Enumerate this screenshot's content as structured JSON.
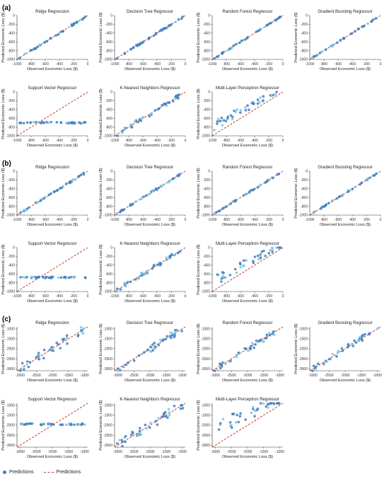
{
  "figure": {
    "legend": {
      "points_label": "Predictions",
      "line_label": "Predictions"
    },
    "colors": {
      "points": "#3f7fbf",
      "points_light": "#7ec8e3",
      "line": "#c23b22",
      "axis": "#333333"
    }
  },
  "panels": [
    {
      "label": "(a)",
      "range": [
        -1000,
        0
      ],
      "ticks": [
        -1000,
        -800,
        -600,
        -400,
        -200,
        0
      ],
      "xlabel": "Observed Economic Loss ($)",
      "ylabel": "Predicted Economic Loss ($)",
      "models": [
        {
          "title": "Ridge Regression",
          "pattern": "tight",
          "spread": 0.02
        },
        {
          "title": "Decision Tree Regressor",
          "pattern": "tight",
          "spread": 0.02
        },
        {
          "title": "Random Forest Regressor",
          "pattern": "tight",
          "spread": 0.015
        },
        {
          "title": "Gradient Boosting Regressor",
          "pattern": "tight",
          "spread": 0.012
        },
        {
          "title": "Support Vector Regressor",
          "pattern": "flat",
          "flat_value": -700
        },
        {
          "title": "K-Nearest Neighbors Regressor",
          "pattern": "tight",
          "spread": 0.05
        },
        {
          "title": "Multi-Layer Perceptron Regressor",
          "pattern": "over",
          "offset": 250
        }
      ]
    },
    {
      "label": "(b)",
      "range": [
        -1000,
        0
      ],
      "ticks": [
        -1000,
        -800,
        -600,
        -400,
        -200,
        0
      ],
      "xlabel": "Observed Economic Loss ($)",
      "ylabel": "Predicted Economic Loss ($)",
      "models": [
        {
          "title": "Ridge Regression",
          "pattern": "tight",
          "spread": 0.02
        },
        {
          "title": "Decision Tree Regressor",
          "pattern": "tight",
          "spread": 0.02
        },
        {
          "title": "Random Forest Regressor",
          "pattern": "tight",
          "spread": 0.015
        },
        {
          "title": "Gradient Boosting Regressor",
          "pattern": "tight",
          "spread": 0.012
        },
        {
          "title": "Support Vector Regressor",
          "pattern": "flat",
          "flat_value": -680
        },
        {
          "title": "K-Nearest Neighbors Regressor",
          "pattern": "tight",
          "spread": 0.05
        },
        {
          "title": "Multi-Layer Perceptron Regressor",
          "pattern": "over",
          "offset": 260
        }
      ]
    },
    {
      "label": "(c)",
      "range": [
        -3100,
        -900
      ],
      "ticks": [
        -3000,
        -2500,
        -2000,
        -1500,
        -1000
      ],
      "xlabel": "Observed Economic Loss ($)",
      "ylabel": "Predicted Economic Loss ($)",
      "models": [
        {
          "title": "Ridge Regression",
          "pattern": "loose",
          "spread": 0.1
        },
        {
          "title": "Decision Tree Regressor",
          "pattern": "loose",
          "spread": 0.08
        },
        {
          "title": "Random Forest Regressor",
          "pattern": "loose",
          "spread": 0.07
        },
        {
          "title": "Gradient Boosting Regressor",
          "pattern": "loose",
          "spread": 0.06
        },
        {
          "title": "Support Vector Regressor",
          "pattern": "flat",
          "flat_value": -1950
        },
        {
          "title": "K-Nearest Neighbors Regressor",
          "pattern": "loose",
          "spread": 0.1
        },
        {
          "title": "Multi-Layer Perceptron Regressor",
          "pattern": "over",
          "offset": 900
        }
      ]
    }
  ]
}
